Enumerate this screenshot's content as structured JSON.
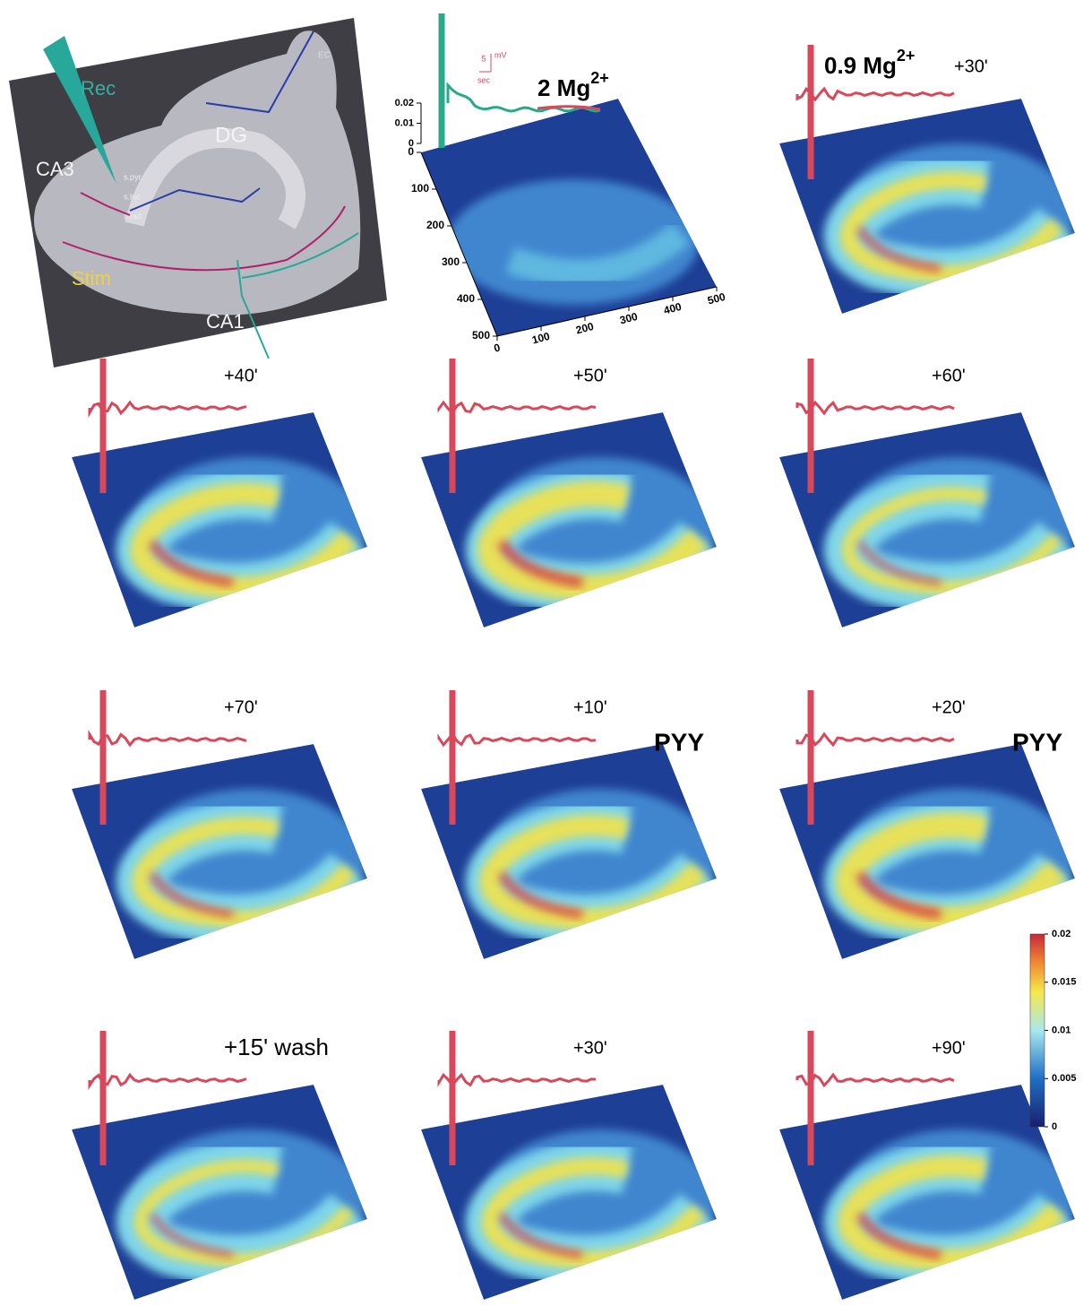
{
  "slice": {
    "rec": "Rec",
    "ec": "EC",
    "dg": "DG",
    "ca3": "CA3",
    "stim": "Stim",
    "ca1": "CA1",
    "layers": [
      "s.pyr",
      "s.luc",
      "s.rad"
    ]
  },
  "scale_bar": {
    "amplitude": 5,
    "unit": "mV",
    "time": "sec"
  },
  "plot_axes": {
    "zticks": [
      0.02,
      0.01,
      0
    ],
    "yticks": [
      0,
      100,
      200,
      300,
      400,
      500
    ],
    "xticks": [
      0,
      100,
      200,
      300,
      400,
      500
    ]
  },
  "panels": [
    {
      "label": "2 Mg",
      "sup": "2+"
    },
    {
      "label": "0.9 Mg",
      "sup": "2+",
      "time": "+30'"
    },
    {
      "time": "+40'"
    },
    {
      "time": "+50'"
    },
    {
      "time": "+60'"
    },
    {
      "time": "+70'"
    },
    {
      "time": "+10'",
      "drug": "PYY"
    },
    {
      "time": "+20'",
      "drug": "PYY"
    },
    {
      "time": "+15' wash"
    },
    {
      "time": "+30'"
    },
    {
      "time": "+90'"
    }
  ],
  "colorbar": {
    "ticks": [
      0.02,
      0.015,
      0.01,
      0.005,
      0
    ]
  }
}
